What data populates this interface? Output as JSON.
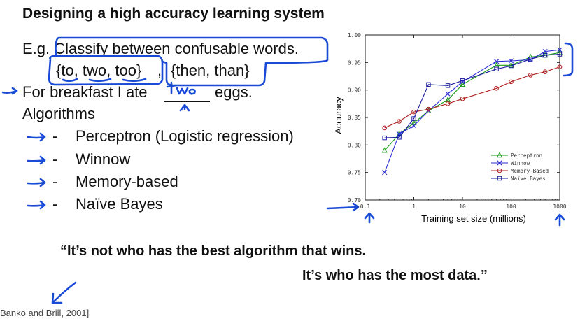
{
  "slide": {
    "title": "Designing a high accuracy learning system",
    "eg_line": "E.g. Classify between confusable words.",
    "word_sets": [
      "{to, two, too}",
      ",",
      "{then, than}"
    ],
    "example_prefix": "For breakfast I ate",
    "example_blank": "two",
    "example_suffix": "eggs.",
    "algorithms_heading": "Algorithms",
    "algorithms": [
      "Perceptron (Logistic regression)",
      "Winnow",
      "Memory-based",
      "Naïve Bayes"
    ],
    "bullet_dash": "-",
    "quote_line1": "“It’s not who has the best algorithm that wins.",
    "quote_line2": "It’s who has the most data.”",
    "citation": "Banko and Brill, 2001]"
  },
  "ink_color": "#1a4bd6",
  "chart_data": {
    "type": "line",
    "xscale": "log",
    "xlabel": "Training set size (millions)",
    "ylabel": "Accuracy",
    "xlim": [
      0.1,
      1000
    ],
    "ylim": [
      0.7,
      1.0
    ],
    "xticks": [
      0.1,
      1,
      10,
      100,
      1000
    ],
    "xtick_labels": [
      "0.1",
      "1",
      "10",
      "100",
      "1000"
    ],
    "yticks": [
      0.7,
      0.75,
      0.8,
      0.85,
      0.9,
      0.95,
      1.0
    ],
    "ytick_labels": [
      "0.70",
      "0.75",
      "0.80",
      "0.85",
      "0.90",
      "0.95",
      "1.00"
    ],
    "legend_position": "lower-right",
    "grid": false,
    "x": [
      0.25,
      0.5,
      1,
      2,
      5,
      10,
      50,
      100,
      250,
      500,
      1000
    ],
    "series": [
      {
        "name": "Perceptron",
        "color": "#1a9c1a",
        "marker": "triangle",
        "values": [
          0.79,
          0.82,
          0.84,
          0.862,
          0.882,
          0.91,
          0.945,
          0.945,
          0.96,
          0.963,
          0.968
        ]
      },
      {
        "name": "Winnow",
        "color": "#2b2bd6",
        "marker": "x",
        "values": [
          0.75,
          0.82,
          0.835,
          0.862,
          0.893,
          0.915,
          0.952,
          0.953,
          0.955,
          0.97,
          0.973
        ]
      },
      {
        "name": "Memory-Based",
        "color": "#b02020",
        "marker": "circle",
        "values": [
          0.831,
          0.843,
          0.86,
          0.865,
          0.875,
          0.884,
          0.903,
          0.915,
          0.927,
          0.933,
          0.942
        ]
      },
      {
        "name": "Naïve Bayes",
        "color": "#1a1aa0",
        "marker": "square",
        "values": [
          0.813,
          0.814,
          0.848,
          0.91,
          0.908,
          0.917,
          0.938,
          0.944,
          0.956,
          0.963,
          0.965
        ]
      }
    ]
  }
}
